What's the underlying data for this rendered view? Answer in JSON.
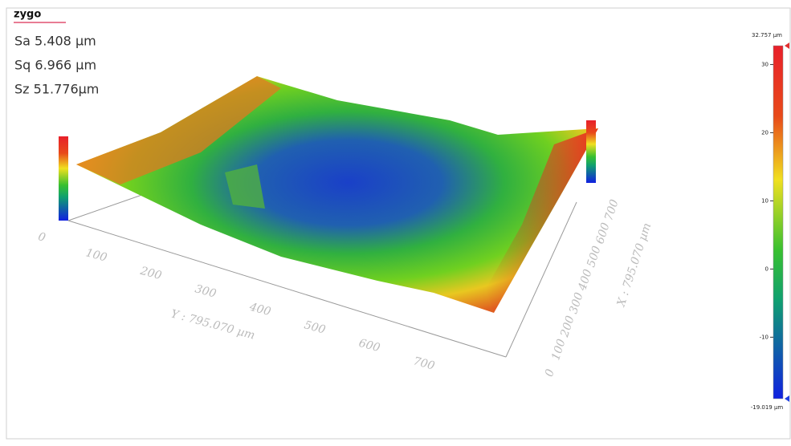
{
  "header": {
    "logo": "zygo"
  },
  "stats": [
    "Sa 5.408  µm",
    "Sq 6.966  µm",
    "Sz 51.776µm"
  ],
  "plot3d": {
    "y_axis": {
      "title": "Y : 795.070 µm",
      "ticks": [
        0,
        100,
        200,
        300,
        400,
        500,
        600,
        700
      ]
    },
    "x_axis": {
      "title": "X : 795.070 µm",
      "ticks": [
        0,
        100,
        200,
        300,
        400,
        500,
        600,
        700
      ]
    }
  },
  "colorbar": {
    "max_label": "32.757 µm",
    "min_label": "-19.019 µm",
    "limits": [
      -19.019,
      32.757
    ],
    "ticks": [
      30,
      20,
      10,
      0,
      -10
    ]
  }
}
